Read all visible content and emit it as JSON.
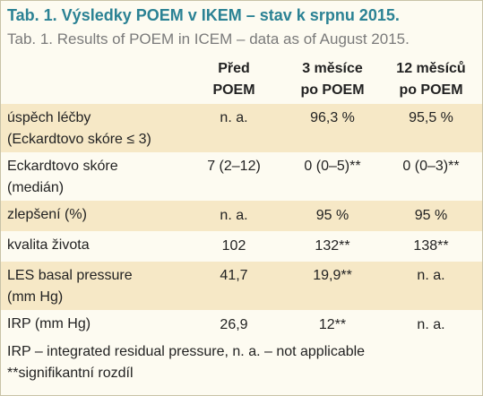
{
  "title": "Tab. 1. Výsledky POEM v IKEM – stav k srpnu 2015.",
  "subtitle": "Tab. 1. Results of POEM in ICEM – data as of August 2015.",
  "table": {
    "header": [
      [
        "Před",
        "POEM"
      ],
      [
        "3 měsíce",
        "po POEM"
      ],
      [
        "12 měsíců",
        "po POEM"
      ]
    ],
    "rows": [
      {
        "label": [
          "úspěch léčby",
          "(Eckardtovo skóre ≤ 3)"
        ],
        "cells": [
          "n. a.",
          "96,3 %",
          "95,5 %"
        ]
      },
      {
        "label": [
          "Eckardtovo skóre",
          "(medián)"
        ],
        "cells": [
          "7 (2–12)",
          "0 (0–5)**",
          "0 (0–3)**"
        ]
      },
      {
        "label": [
          "zlepšení (%)"
        ],
        "cells": [
          "n. a.",
          "95 %",
          "95 %"
        ]
      },
      {
        "label": [
          "kvalita života"
        ],
        "cells": [
          "102",
          "132**",
          "138**"
        ]
      },
      {
        "label": [
          "LES basal pressure",
          "(mm Hg)"
        ],
        "cells": [
          "41,7",
          "19,9**",
          "n. a."
        ]
      },
      {
        "label": [
          "IRP (mm Hg)"
        ],
        "cells": [
          "26,9",
          "12**",
          "n. a."
        ]
      }
    ]
  },
  "footnotes": [
    "IRP – integrated residual pressure, n. a. – not applicable",
    "**signifikantní rozdíl"
  ]
}
